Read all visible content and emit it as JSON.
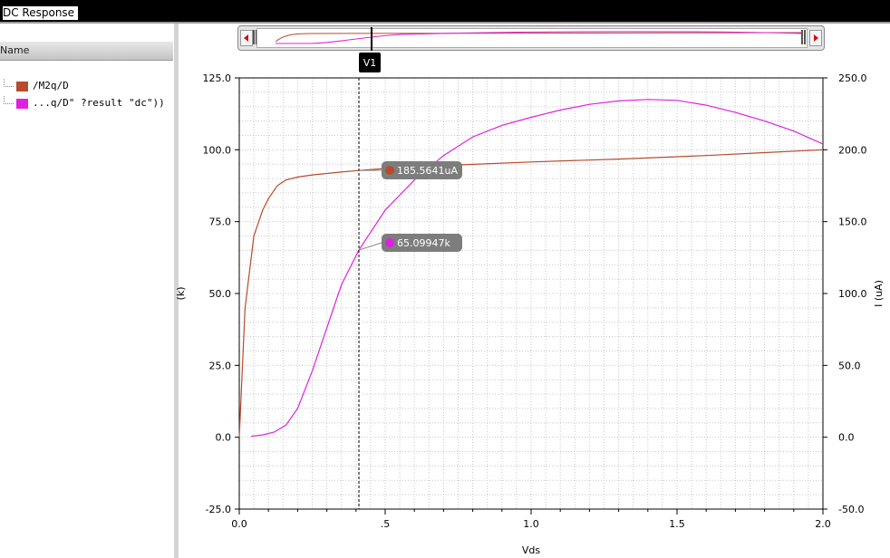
{
  "window": {
    "title": "DC Response"
  },
  "sidebar": {
    "header": "Name",
    "signals": [
      {
        "label": "/M2q/D",
        "color": "#b84a2e"
      },
      {
        "label": "...q/D\" ?result \"dc\"))",
        "color": "#e020e0"
      }
    ]
  },
  "cursor": {
    "label": "V1",
    "x": 0.41
  },
  "markers": [
    {
      "label": "185.5641uA",
      "color": "#b84a2e"
    },
    {
      "label": "65.09947k",
      "color": "#e020e0"
    }
  ],
  "chart_data": {
    "type": "line",
    "xlabel": "Vds",
    "x_range": [
      0,
      2.0
    ],
    "x_ticks": [
      "0.0",
      ".5",
      "1.0",
      "1.5",
      "2.0"
    ],
    "x_tick_values": [
      0,
      0.5,
      1.0,
      1.5,
      2.0
    ],
    "ylabel_left": "(k)",
    "y_left_range": [
      -25,
      125
    ],
    "y_left_ticks": [
      "125.0",
      "100.0",
      "75.0",
      "50.0",
      "25.0",
      "0.0",
      "-25.0"
    ],
    "y_left_tick_values": [
      125,
      100,
      75,
      50,
      25,
      0,
      -25
    ],
    "ylabel_right": "I (uA)",
    "y_right_range": [
      -50,
      250
    ],
    "y_right_ticks": [
      "250.0",
      "200.0",
      "150.0",
      "100.0",
      "50.0",
      "0.0",
      "-50.0"
    ],
    "y_right_tick_values": [
      250,
      200,
      150,
      100,
      50,
      0,
      -50
    ],
    "grid": true,
    "series": [
      {
        "name": "/M2q/D",
        "axis": "right",
        "color": "#b84a2e",
        "x": [
          0.0,
          0.02,
          0.05,
          0.08,
          0.1,
          0.13,
          0.16,
          0.2,
          0.25,
          0.3,
          0.35,
          0.41,
          0.5,
          0.7,
          1.0,
          1.3,
          1.6,
          1.8,
          2.0
        ],
        "y": [
          0,
          90,
          140,
          158,
          166,
          175,
          179,
          181,
          182.5,
          183.5,
          184.5,
          185.56,
          187,
          189,
          191.5,
          193.5,
          196,
          198,
          200
        ]
      },
      {
        "name": "...q/D\" ?result \"dc\"))",
        "axis": "left",
        "color": "#e020e0",
        "x": [
          0.04,
          0.08,
          0.12,
          0.16,
          0.2,
          0.25,
          0.3,
          0.35,
          0.41,
          0.5,
          0.6,
          0.7,
          0.8,
          0.9,
          1.0,
          1.1,
          1.2,
          1.3,
          1.4,
          1.5,
          1.6,
          1.7,
          1.8,
          1.9,
          2.0
        ],
        "y": [
          0.3,
          0.8,
          1.8,
          4.2,
          10,
          23,
          38,
          53,
          65.1,
          79,
          89.5,
          98,
          104.5,
          108.5,
          111.3,
          113.8,
          115.8,
          117,
          117.5,
          117.2,
          115.5,
          113,
          110,
          106.5,
          102
        ]
      }
    ]
  }
}
